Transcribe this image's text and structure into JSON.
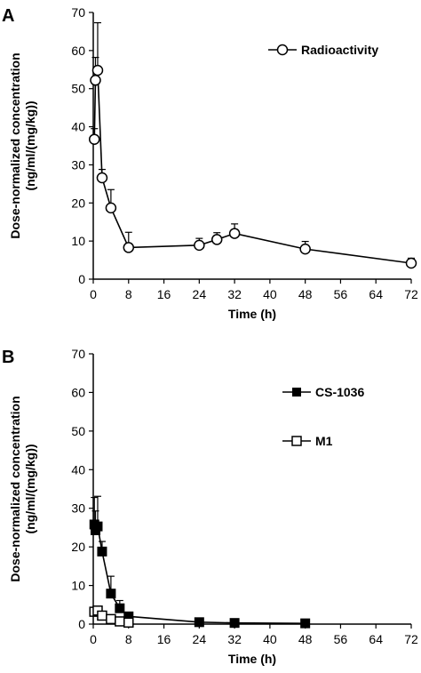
{
  "chart_data": [
    {
      "panel": "A",
      "type": "line",
      "xlabel": "Time (h)",
      "ylabel": "Dose-normalized concentration\n(ng/ml/(mg/kg))",
      "xlim": [
        0,
        72
      ],
      "ylim": [
        0,
        70
      ],
      "xticks": [
        0,
        8,
        16,
        24,
        32,
        40,
        48,
        56,
        64,
        72
      ],
      "yticks": [
        0,
        10,
        20,
        30,
        40,
        50,
        60,
        70
      ],
      "grid": false,
      "legend_position": "top-right",
      "series": [
        {
          "name": "Radioactivity",
          "marker": "circle-open",
          "x": [
            0.25,
            0.5,
            1,
            2,
            4,
            8,
            24,
            28,
            32,
            48,
            72
          ],
          "y": [
            36.7,
            52.2,
            54.8,
            26.6,
            18.7,
            8.3,
            8.9,
            10.4,
            12.0,
            7.9,
            4.2
          ],
          "err": [
            2.8,
            6.0,
            12.5,
            2.2,
            4.8,
            4.0,
            1.8,
            1.8,
            2.5,
            2.0,
            1.3
          ]
        }
      ]
    },
    {
      "panel": "B",
      "type": "line",
      "xlabel": "Time (h)",
      "ylabel": "Dose-normalized concentration\n(ng/ml/(mg/kg))",
      "xlim": [
        0,
        72
      ],
      "ylim": [
        0,
        70
      ],
      "xticks": [
        0,
        8,
        16,
        24,
        32,
        40,
        48,
        56,
        64,
        72
      ],
      "yticks": [
        0,
        10,
        20,
        30,
        40,
        50,
        60,
        70
      ],
      "grid": false,
      "legend_position": "top-right",
      "series": [
        {
          "name": "CS-1036",
          "marker": "square-filled",
          "x": [
            0.25,
            0.5,
            1,
            2,
            4,
            6,
            8,
            24,
            32,
            48
          ],
          "y": [
            25.8,
            24.3,
            25.3,
            18.8,
            7.9,
            4.1,
            2.0,
            0.5,
            0.3,
            0.2
          ],
          "err": [
            7.0,
            5.0,
            7.8,
            2.6,
            4.5,
            2.0,
            0.8,
            0.3,
            0.2,
            0.1
          ]
        },
        {
          "name": "M1",
          "marker": "square-open",
          "x": [
            0.25,
            1,
            2,
            4,
            6,
            8
          ],
          "y": [
            3.2,
            3.5,
            2.2,
            1.3,
            0.7,
            0.4
          ],
          "err": [
            1.0,
            1.0,
            0.6,
            0.4,
            0.3,
            0.2
          ]
        }
      ]
    }
  ]
}
